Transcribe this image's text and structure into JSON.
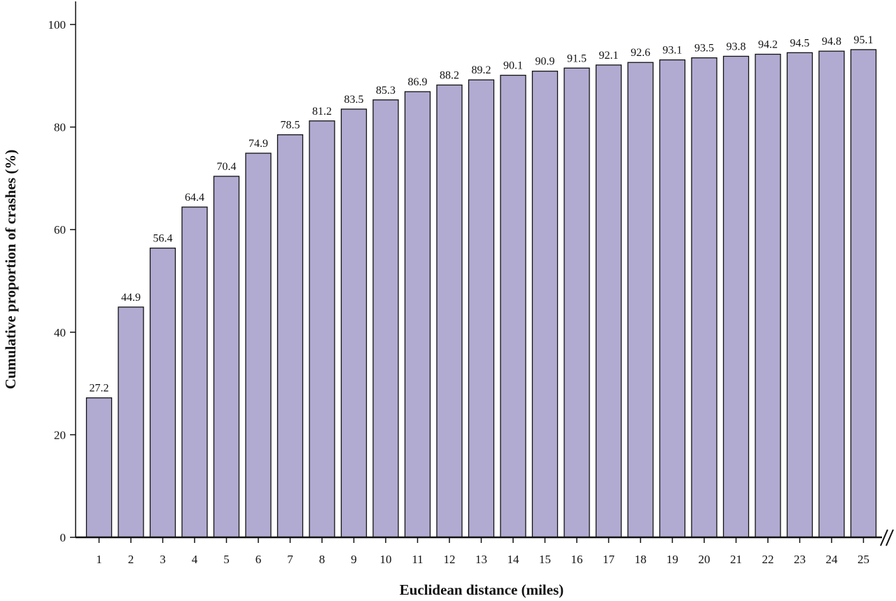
{
  "chart_data": {
    "type": "bar",
    "categories": [
      "1",
      "2",
      "3",
      "4",
      "5",
      "6",
      "7",
      "8",
      "9",
      "10",
      "11",
      "12",
      "13",
      "14",
      "15",
      "16",
      "17",
      "18",
      "19",
      "20",
      "21",
      "22",
      "23",
      "24",
      "25"
    ],
    "values": [
      27.2,
      44.9,
      56.4,
      64.4,
      70.4,
      74.9,
      78.5,
      81.2,
      83.5,
      85.3,
      86.9,
      88.2,
      89.2,
      90.1,
      90.9,
      91.5,
      92.1,
      92.6,
      93.1,
      93.5,
      93.8,
      94.2,
      94.5,
      94.8,
      95.1
    ],
    "data_labels": [
      "27.2",
      "44.9",
      "56.4",
      "64.4",
      "70.4",
      "74.9",
      "78.5",
      "81.2",
      "83.5",
      "85.3",
      "86.9",
      "88.2",
      "89.2",
      "90.1",
      "90.9",
      "91.5",
      "92.1",
      "92.6",
      "93.1",
      "93.5",
      "93.8",
      "94.2",
      "94.5",
      "94.8",
      "95.1"
    ],
    "title": "",
    "xlabel": "Euclidean distance (miles)",
    "ylabel": "Cumulative proportion of crashes (%)",
    "ylim": [
      0,
      100
    ],
    "yticks": [
      "0",
      "20",
      "40",
      "60",
      "80",
      "100"
    ],
    "grid": false,
    "legend": "none",
    "bar_color": "#b1abd2",
    "x_axis_break": true
  }
}
